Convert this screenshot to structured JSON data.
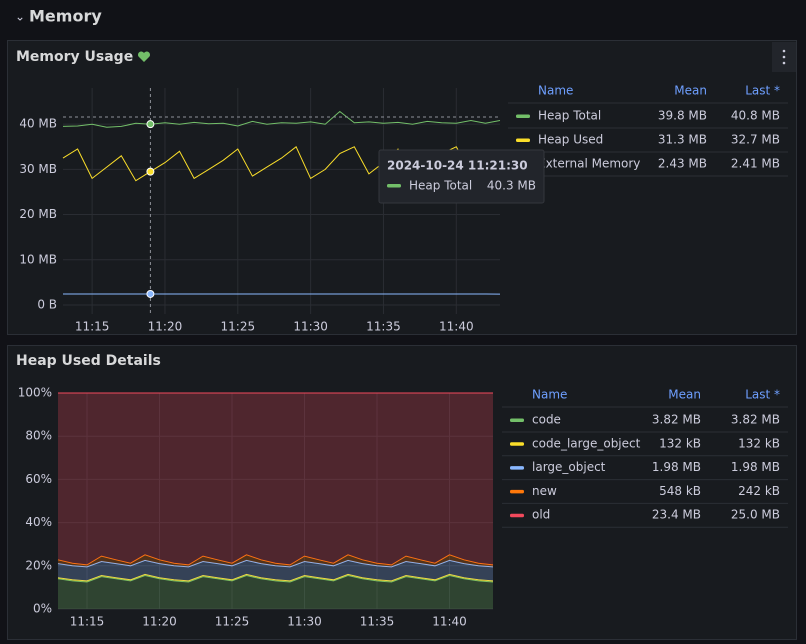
{
  "section": {
    "title": "Memory"
  },
  "chart_data": [
    {
      "type": "line",
      "title": "Memory Usage",
      "x": [
        "11:13",
        "11:14",
        "11:15",
        "11:16",
        "11:17",
        "11:18",
        "11:19",
        "11:20",
        "11:21",
        "11:22",
        "11:23",
        "11:24",
        "11:25",
        "11:26",
        "11:27",
        "11:28",
        "11:29",
        "11:30",
        "11:31",
        "11:32",
        "11:33",
        "11:34",
        "11:35",
        "11:36",
        "11:37",
        "11:38",
        "11:39",
        "11:40",
        "11:41",
        "11:42",
        "11:43"
      ],
      "xticks": [
        "11:15",
        "11:20",
        "11:25",
        "11:30",
        "11:35",
        "11:40"
      ],
      "ylim": [
        -2,
        48
      ],
      "yticks": [
        {
          "value": 0,
          "label": "0 B"
        },
        {
          "value": 10,
          "label": "10 MB"
        },
        {
          "value": 20,
          "label": "20 MB"
        },
        {
          "value": 30,
          "label": "30 MB"
        },
        {
          "value": 40,
          "label": "40 MB"
        }
      ],
      "grid": true,
      "series": [
        {
          "name": "Heap Total",
          "color": "#73bf69",
          "mean": "39.8 MB",
          "last": "40.8 MB",
          "values": [
            39.5,
            39.6,
            40.0,
            39.3,
            39.5,
            40.2,
            40.0,
            40.3,
            40.0,
            40.4,
            40.1,
            40.2,
            39.6,
            40.6,
            40.0,
            40.3,
            40.2,
            40.5,
            40.0,
            42.8,
            40.3,
            40.5,
            40.2,
            40.4,
            40.0,
            40.6,
            40.3,
            40.2,
            40.8,
            40.2,
            40.8
          ]
        },
        {
          "name": "Heap Used",
          "color": "#fade2a",
          "mean": "31.3 MB",
          "last": "32.7 MB",
          "values": [
            32.5,
            34.5,
            28.0,
            30.5,
            33.0,
            27.5,
            29.5,
            31.5,
            34.0,
            28.0,
            30.0,
            32.0,
            34.5,
            28.5,
            30.5,
            32.5,
            35.0,
            28.0,
            30.0,
            33.5,
            35.0,
            29.0,
            31.5,
            34.5,
            29.0,
            31.0,
            33.5,
            35.0,
            29.0,
            31.5,
            32.7
          ]
        },
        {
          "name": "External Memory",
          "color": "#8ab8ff",
          "mean": "2.43 MB",
          "last": "2.41 MB",
          "values": [
            2.43,
            2.43,
            2.43,
            2.43,
            2.43,
            2.43,
            2.43,
            2.43,
            2.43,
            2.43,
            2.43,
            2.43,
            2.43,
            2.43,
            2.43,
            2.43,
            2.43,
            2.43,
            2.43,
            2.43,
            2.43,
            2.43,
            2.43,
            2.43,
            2.43,
            2.43,
            2.43,
            2.43,
            2.43,
            2.43,
            2.41
          ]
        }
      ],
      "legend_headers": [
        "Name",
        "Mean",
        "Last *"
      ],
      "tooltip": {
        "time": "2024-10-24 11:21:30",
        "name": "Heap Total",
        "value": "40.3 MB"
      }
    },
    {
      "type": "area",
      "stacked": true,
      "title": "Heap Used Details",
      "x": [
        "11:13",
        "11:14",
        "11:15",
        "11:16",
        "11:17",
        "11:18",
        "11:19",
        "11:20",
        "11:21",
        "11:22",
        "11:23",
        "11:24",
        "11:25",
        "11:26",
        "11:27",
        "11:28",
        "11:29",
        "11:30",
        "11:31",
        "11:32",
        "11:33",
        "11:34",
        "11:35",
        "11:36",
        "11:37",
        "11:38",
        "11:39",
        "11:40",
        "11:41",
        "11:42",
        "11:43"
      ],
      "xticks": [
        "11:15",
        "11:20",
        "11:25",
        "11:30",
        "11:35",
        "11:40"
      ],
      "ylim": [
        0,
        100
      ],
      "yticks": [
        {
          "value": 0,
          "label": "0%"
        },
        {
          "value": 20,
          "label": "20%"
        },
        {
          "value": 40,
          "label": "40%"
        },
        {
          "value": 60,
          "label": "60%"
        },
        {
          "value": 80,
          "label": "80%"
        },
        {
          "value": 100,
          "label": "100%"
        }
      ],
      "grid": true,
      "series": [
        {
          "name": "code",
          "color": "#73bf69",
          "mean": "3.82 MB",
          "last": "3.82 MB",
          "values": [
            14,
            13,
            12.5,
            15,
            14,
            13,
            15.5,
            14,
            13,
            12.5,
            15,
            14,
            13,
            15.5,
            14,
            13,
            12.5,
            15,
            14,
            13,
            15.5,
            14,
            13,
            12.5,
            15,
            14,
            13,
            15.5,
            14,
            13,
            12.5
          ]
        },
        {
          "name": "code_large_object",
          "color": "#fade2a",
          "mean": "132 kB",
          "last": "132 kB",
          "values": [
            0.5,
            0.5,
            0.5,
            0.5,
            0.5,
            0.5,
            0.5,
            0.5,
            0.5,
            0.5,
            0.5,
            0.5,
            0.5,
            0.5,
            0.5,
            0.5,
            0.5,
            0.5,
            0.5,
            0.5,
            0.5,
            0.5,
            0.5,
            0.5,
            0.5,
            0.5,
            0.5,
            0.5,
            0.5,
            0.5,
            0.5
          ]
        },
        {
          "name": "large_object",
          "color": "#8ab8ff",
          "mean": "1.98 MB",
          "last": "1.98 MB",
          "values": [
            6.5,
            6.5,
            6.5,
            6.5,
            6.5,
            6.5,
            6.5,
            6.5,
            6.5,
            6.5,
            6.5,
            6.5,
            6.5,
            6.5,
            6.5,
            6.5,
            6.5,
            6.5,
            6.5,
            6.5,
            6.5,
            6.5,
            6.5,
            6.5,
            6.5,
            6.5,
            6.5,
            6.5,
            6.5,
            6.5,
            6.5
          ]
        },
        {
          "name": "new",
          "color": "#ff780a",
          "mean": "548 kB",
          "last": "242 kB",
          "values": [
            1.8,
            1.2,
            0.9,
            2.5,
            1.8,
            1.2,
            2.6,
            1.8,
            1.2,
            0.9,
            2.5,
            1.8,
            1.2,
            2.6,
            1.8,
            1.2,
            0.9,
            2.5,
            1.8,
            1.2,
            2.6,
            1.8,
            1.2,
            0.9,
            2.5,
            1.8,
            1.2,
            2.6,
            1.8,
            1.2,
            0.9
          ]
        },
        {
          "name": "old",
          "color": "#f2495c",
          "mean": "23.4 MB",
          "last": "25.0 MB",
          "values": [
            77.2,
            78.8,
            79.6,
            75.5,
            77.2,
            78.8,
            74.9,
            77.2,
            78.8,
            79.6,
            75.5,
            77.2,
            78.8,
            74.9,
            77.2,
            78.8,
            79.6,
            75.5,
            77.2,
            78.8,
            74.9,
            77.2,
            78.8,
            79.6,
            75.5,
            77.2,
            78.8,
            74.9,
            77.2,
            78.8,
            79.6
          ]
        }
      ],
      "legend_headers": [
        "Name",
        "Mean",
        "Last *"
      ]
    }
  ]
}
